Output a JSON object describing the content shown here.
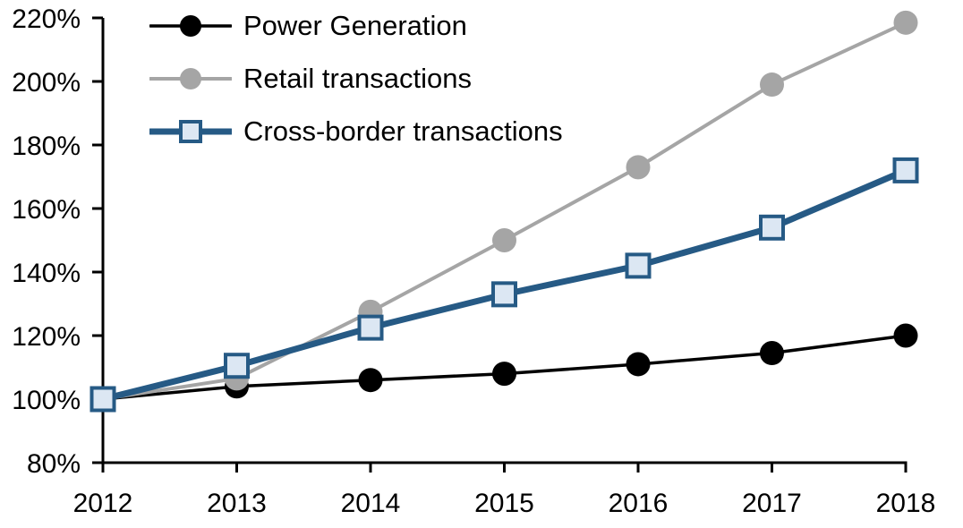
{
  "chart_data": {
    "type": "line",
    "title": "",
    "xlabel": "",
    "ylabel": "",
    "categories": [
      "2012",
      "2013",
      "2014",
      "2015",
      "2016",
      "2017",
      "2018"
    ],
    "series": [
      {
        "name": "Power Generation",
        "color": "#000000",
        "marker": "circle",
        "marker_fill": "#000000",
        "line_width": 3.5,
        "values": [
          100,
          104,
          106,
          108,
          111,
          114.5,
          120
        ]
      },
      {
        "name": "Retail transactions",
        "color": "#A5A5A5",
        "marker": "circle",
        "marker_fill": "#A5A5A5",
        "line_width": 4,
        "values": [
          100,
          106.5,
          127.5,
          150,
          173,
          199,
          218.5
        ]
      },
      {
        "name": "Cross-border transactions",
        "color": "#265A85",
        "marker": "square",
        "marker_fill": "#DCE7F3",
        "line_width": 7,
        "values": [
          100,
          110.5,
          122.5,
          133,
          142,
          154,
          172
        ]
      }
    ],
    "ylim": [
      80,
      220
    ],
    "y_tick_step": 20,
    "y_tick_labels": [
      "80%",
      "100%",
      "120%",
      "140%",
      "160%",
      "180%",
      "200%",
      "220%"
    ],
    "x_tick_labels": [
      "2012",
      "2013",
      "2014",
      "2015",
      "2016",
      "2017",
      "2018"
    ],
    "grid": false,
    "legend_position": "top-left",
    "axis_color": "#000000"
  }
}
